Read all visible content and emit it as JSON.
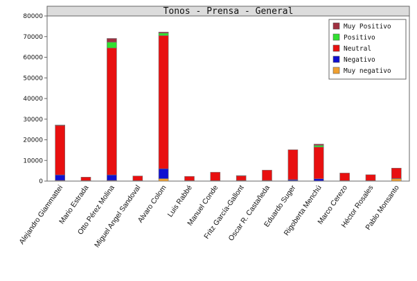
{
  "chart_data": {
    "type": "bar",
    "stacked": true,
    "title": "Tonos - Prensa - General",
    "xlabel": "",
    "ylabel": "",
    "ylim": [
      0,
      80000
    ],
    "yticks": [
      0,
      10000,
      20000,
      30000,
      40000,
      50000,
      60000,
      70000,
      80000
    ],
    "grid": false,
    "legend_position": "top-right",
    "categories": [
      "Alejandro Giammattei",
      "Mario Estrada",
      "Otto Pérez Molina",
      "Miguel Angel Sandoval",
      "Alvaro Colom",
      "Luis Rabbé",
      "Manuel Conde",
      "Fritz García-Gallont",
      "Oscar R. Castañeda",
      "Eduardo Suger",
      "Rigoberta Menchú",
      "Marco Cerezo",
      "Héctor Rosales",
      "Pablo Monsanto"
    ],
    "series": [
      {
        "name": "Muy negativo",
        "color": "#f0a030",
        "values": [
          300,
          100,
          300,
          100,
          1200,
          100,
          100,
          100,
          100,
          200,
          100,
          100,
          100,
          1100
        ]
      },
      {
        "name": "Negativo",
        "color": "#1010d0",
        "values": [
          2700,
          100,
          2700,
          100,
          4800,
          100,
          100,
          200,
          200,
          500,
          1000,
          100,
          100,
          200
        ]
      },
      {
        "name": "Neutral",
        "color": "#e81010",
        "values": [
          24000,
          1700,
          61500,
          2300,
          64500,
          2100,
          4100,
          2300,
          5000,
          14500,
          15400,
          3700,
          2900,
          5000
        ]
      },
      {
        "name": "Positivo",
        "color": "#30e030",
        "values": [
          100,
          0,
          2800,
          0,
          1200,
          0,
          0,
          100,
          0,
          0,
          800,
          0,
          0,
          0
        ]
      },
      {
        "name": "Muy Positivo",
        "color": "#a03040",
        "values": [
          100,
          0,
          1800,
          0,
          500,
          0,
          0,
          0,
          0,
          0,
          600,
          0,
          0,
          0
        ]
      }
    ]
  }
}
